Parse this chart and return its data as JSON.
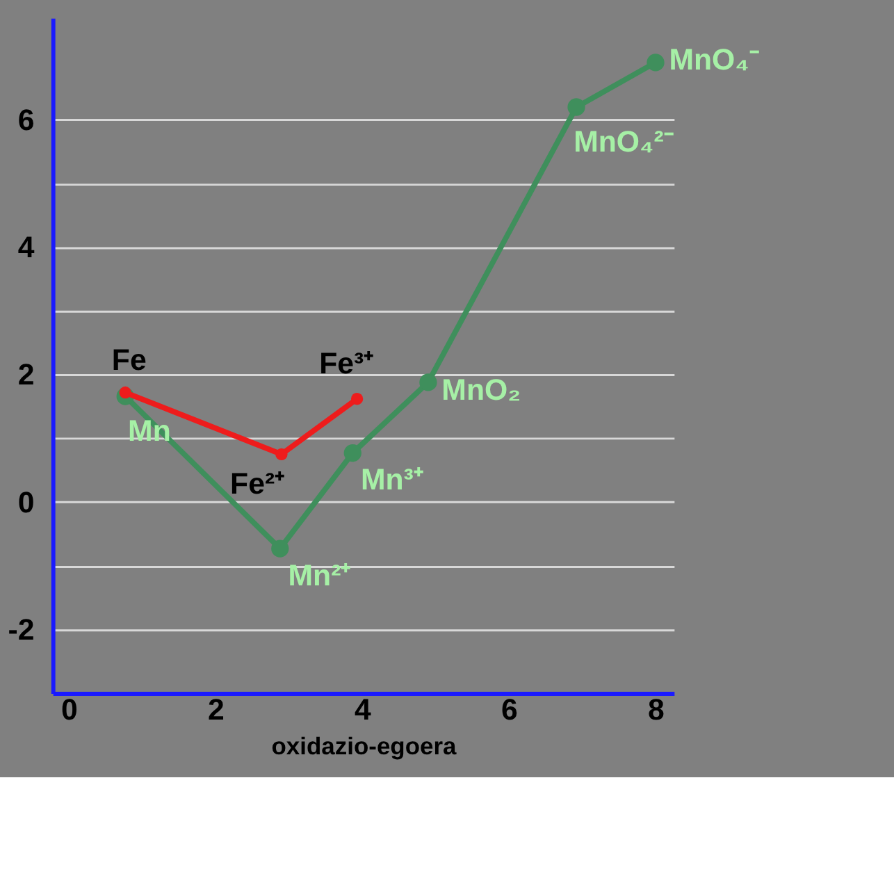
{
  "chart_data": {
    "type": "line",
    "xlabel": "oxidazio-egoera",
    "series": [
      {
        "color": "#3f8f5c",
        "x": [
          0.77,
          2.88,
          3.87,
          4.9,
          6.92,
          8.0
        ],
        "values": [
          1.66,
          -0.73,
          0.77,
          1.88,
          6.2,
          6.9
        ]
      },
      {
        "color": "#ee1c1c",
        "x": [
          0.77,
          2.9,
          3.93
        ],
        "values": [
          1.72,
          0.75,
          1.62
        ]
      }
    ],
    "xlim": [
      -0.22,
      8.25
    ],
    "ylim": [
      -3,
      7.6
    ],
    "xticks": [
      0,
      2,
      4,
      6,
      8
    ],
    "yticks": [
      -2,
      {
        "value": -1,
        "label": null
      },
      0,
      {
        "value": 1,
        "label": null
      },
      2,
      {
        "value": 3,
        "label": null
      },
      4,
      {
        "value": 5,
        "label": null
      },
      6
    ],
    "grid": "y",
    "marker": "circle",
    "line_style": "solid",
    "annotations": [
      {
        "text": "Fe",
        "x": 0.77,
        "y": 1.72
      },
      {
        "text": "Mn",
        "x": 0.77,
        "y": 1.66
      },
      {
        "text": "Fe²⁺",
        "x": 2.9,
        "y": 0.75
      },
      {
        "text": "Mn²⁺",
        "x": 2.88,
        "y": -0.73
      },
      {
        "text": "Fe³⁺",
        "x": 3.93,
        "y": 1.62
      },
      {
        "text": "Mn³⁺",
        "x": 3.87,
        "y": 0.77
      },
      {
        "text": "MnO₂",
        "x": 4.9,
        "y": 1.88
      },
      {
        "text": "MnO₄²⁻",
        "x": 6.92,
        "y": 6.2
      },
      {
        "text": "MnO₄⁻",
        "x": 8.0,
        "y": 6.9
      }
    ]
  }
}
